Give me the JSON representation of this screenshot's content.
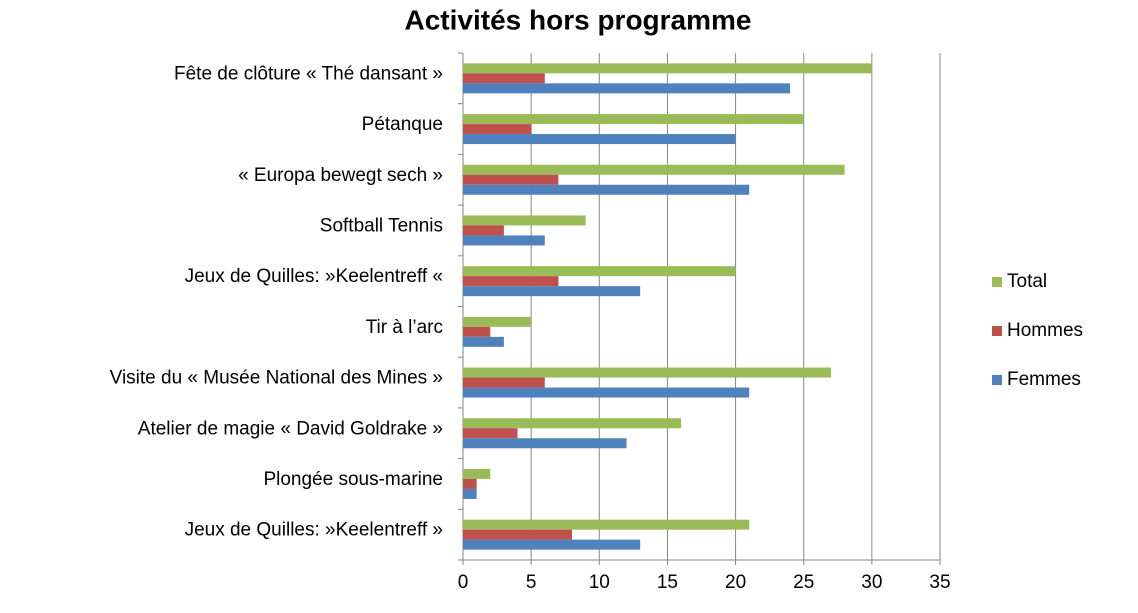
{
  "chart_data": {
    "type": "hbar",
    "title": "Activités hors programme",
    "categories": [
      "Fête de clôture « Thé dansant »",
      "Pétanque",
      "« Europa bewegt sech »",
      "Softball Tennis",
      "Jeux de Quilles: »Keelentreff «",
      "Tir à l’arc",
      "Visite du « Musée National des Mines »",
      "Atelier de magie « David Goldrake »",
      "Plongée sous-marine",
      "Jeux de Quilles: »Keelentreff »"
    ],
    "series": [
      {
        "name": "Total",
        "color": "#9bbb59",
        "values": [
          30,
          25,
          28,
          9,
          20,
          5,
          27,
          16,
          2,
          21
        ]
      },
      {
        "name": "Hommes",
        "color": "#c0504d",
        "values": [
          6,
          5,
          7,
          3,
          7,
          2,
          6,
          4,
          1,
          8
        ]
      },
      {
        "name": "Femmes",
        "color": "#4f81bd",
        "values": [
          24,
          20,
          21,
          6,
          13,
          3,
          21,
          12,
          1,
          13
        ]
      }
    ],
    "xlim": [
      0,
      35
    ],
    "xticks": [
      0,
      5,
      10,
      15,
      20,
      25,
      30,
      35
    ],
    "grid": true,
    "legend": "right"
  }
}
